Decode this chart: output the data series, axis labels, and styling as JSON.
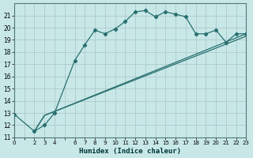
{
  "title": "",
  "xlabel": "Humidex (Indice chaleur)",
  "ylabel": "",
  "bg_color": "#c8e8e8",
  "grid_color": "#b0c8c8",
  "line_color": "#2a7070",
  "xlim": [
    0,
    23
  ],
  "ylim": [
    11,
    22
  ],
  "yticks": [
    11,
    12,
    13,
    14,
    15,
    16,
    17,
    18,
    19,
    20,
    21
  ],
  "series1_x": [
    0,
    2,
    3,
    4,
    6,
    7,
    8,
    9,
    10,
    11,
    12,
    13,
    14,
    15,
    16,
    17,
    18,
    19,
    20,
    21,
    22,
    23
  ],
  "series1_y": [
    12.9,
    11.5,
    12.0,
    13.0,
    17.3,
    18.6,
    19.8,
    19.5,
    19.9,
    20.5,
    21.3,
    21.4,
    20.9,
    21.3,
    21.1,
    20.9,
    19.5,
    19.5,
    19.8,
    18.8,
    19.5,
    19.5
  ],
  "series2_x": [
    2,
    3,
    23
  ],
  "series2_y": [
    11.5,
    12.8,
    19.3
  ],
  "series3_x": [
    2,
    3,
    23
  ],
  "series3_y": [
    11.5,
    12.8,
    19.5
  ]
}
